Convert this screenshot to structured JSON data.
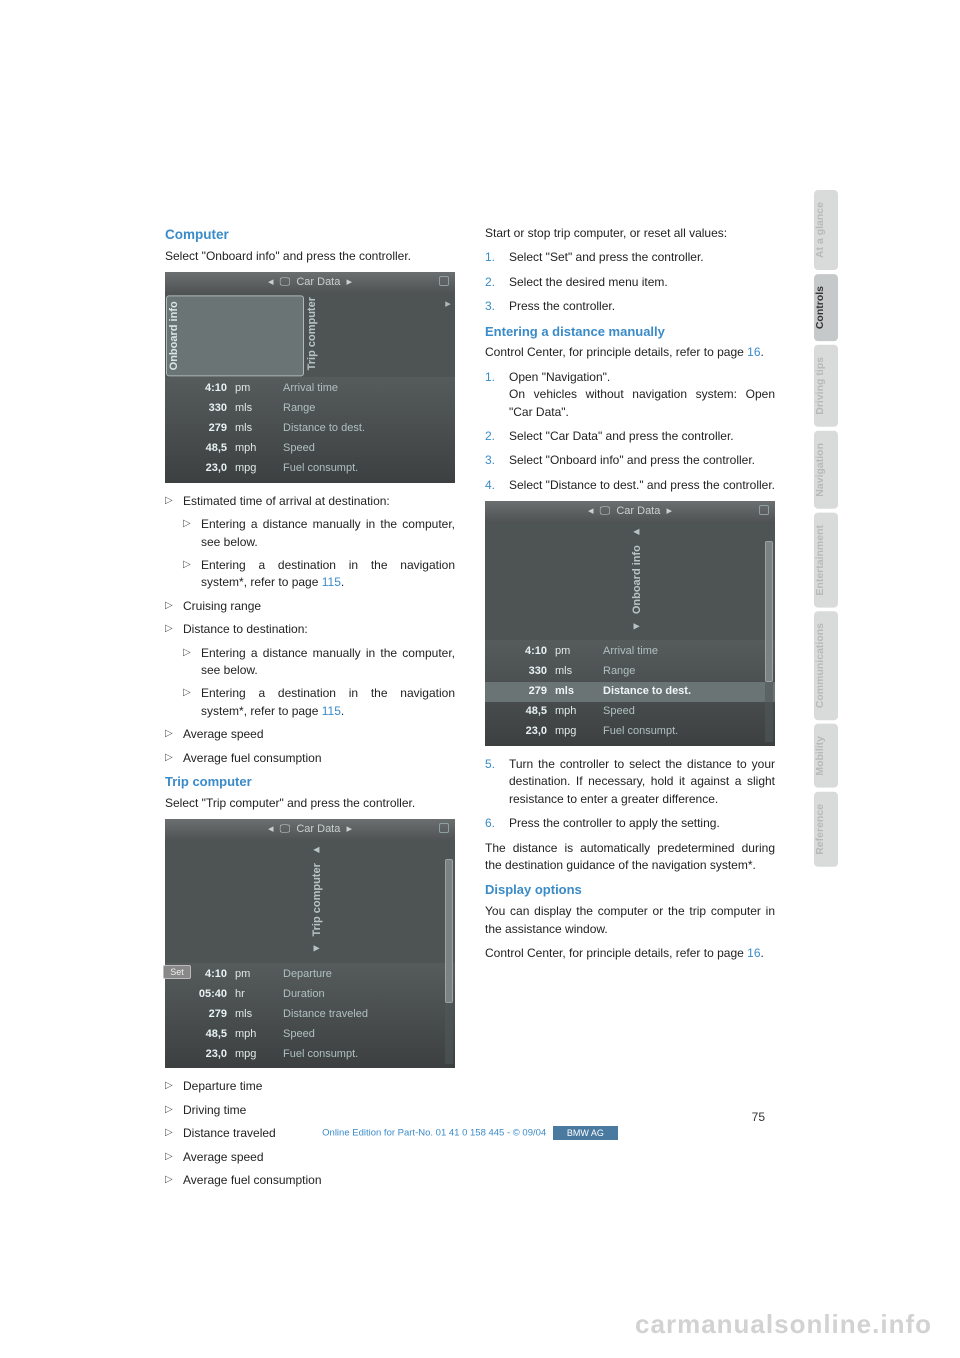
{
  "left": {
    "h_computer": "Computer",
    "p_computer": "Select \"Onboard info\" and press the controller.",
    "img1": {
      "header": "Car Data",
      "tab_active": "Onboard info",
      "tab_inactive": "Trip computer",
      "rows": [
        {
          "v": "4:10",
          "u": "pm",
          "l": "Arrival time"
        },
        {
          "v": "330",
          "u": "mls",
          "l": "Range"
        },
        {
          "v": "279",
          "u": "mls",
          "l": "Distance to dest."
        },
        {
          "v": "48,5",
          "u": "mph",
          "l": "Speed"
        },
        {
          "v": "23,0",
          "u": "mpg",
          "l": "Fuel consumpt."
        }
      ]
    },
    "bl1": "Estimated time of arrival at destination:",
    "bl1a": "Entering a distance manually in the computer, see below.",
    "bl1b_a": "Entering a destination in the navigation system",
    "bl1b_b": ", refer to page ",
    "bl1b_pg": "115",
    "bl1b_c": ".",
    "bl2": "Cruising range",
    "bl3": "Distance to destination:",
    "bl3a": "Entering a distance manually in the computer, see below.",
    "bl3b_a": "Entering a destination in the navigation system",
    "bl3b_b": ", refer to page ",
    "bl3b_pg": "115",
    "bl3b_c": ".",
    "bl4": "Average speed",
    "bl5": "Average fuel consumption",
    "h_trip": "Trip computer",
    "p_trip": "Select \"Trip computer\" and press the controller.",
    "img2": {
      "header": "Car Data",
      "sub": "Trip computer",
      "set": "Set",
      "rows": [
        {
          "v": "4:10",
          "u": "pm",
          "l": "Departure"
        },
        {
          "v": "05:40",
          "u": "hr",
          "l": "Duration"
        },
        {
          "v": "279",
          "u": "mls",
          "l": "Distance traveled"
        },
        {
          "v": "48,5",
          "u": "mph",
          "l": "Speed"
        },
        {
          "v": "23,0",
          "u": "mpg",
          "l": "Fuel consumpt."
        }
      ]
    },
    "trip_b1": "Departure time",
    "trip_b2": "Driving time",
    "trip_b3": "Distance traveled",
    "trip_b4": "Average speed",
    "trip_b5": "Average fuel consumption"
  },
  "right": {
    "p_start": "Start or stop trip computer, or reset all values:",
    "s1": "Select \"Set\" and press the controller.",
    "s2": "Select the desired menu item.",
    "s3": "Press the controller.",
    "h_dist": "Entering a distance manually",
    "p_dist_a": "Control Center, for principle details, refer to page ",
    "p_dist_pg": "16",
    "p_dist_b": ".",
    "d1a": "Open \"Navigation\".",
    "d1b": "On vehicles without navigation system: Open \"Car Data\".",
    "d2": "Select \"Car Data\" and press the controller.",
    "d3": "Select \"Onboard info\" and press the controller.",
    "d4": "Select \"Distance to dest.\" and press the controller.",
    "img3": {
      "header": "Car Data",
      "sub": "Onboard info",
      "rows": [
        {
          "v": "4:10",
          "u": "pm",
          "l": "Arrival time"
        },
        {
          "v": "330",
          "u": "mls",
          "l": "Range"
        },
        {
          "v": "279",
          "u": "mls",
          "l": "Distance to dest.",
          "hl": true
        },
        {
          "v": "48,5",
          "u": "mph",
          "l": "Speed"
        },
        {
          "v": "23,0",
          "u": "mpg",
          "l": "Fuel consumpt."
        }
      ]
    },
    "d5": "Turn the controller to select the distance to your destination. If necessary, hold it against a slight resistance to enter a greater difference.",
    "d6": "Press the controller to apply the setting.",
    "p_auto_a": "The distance is automatically predetermined during the destination guidance of the navigation system",
    "p_auto_b": ".",
    "h_disp": "Display options",
    "p_disp1": "You can display the computer or the trip computer in the assistance window.",
    "p_disp2_a": "Control Center, for principle details, refer to page ",
    "p_disp2_pg": "16",
    "p_disp2_b": "."
  },
  "tabs": {
    "t1": "At a glance",
    "t2": "Controls",
    "t3": "Driving tips",
    "t4": "Navigation",
    "t5": "Entertainment",
    "t6": "Communications",
    "t7": "Mobility",
    "t8": "Reference"
  },
  "footer": {
    "page": "75",
    "text": "Online Edition for Part-No. 01 41 0 158 445 - © 09/04",
    "bar": "BMW AG"
  },
  "watermark": "carmanualsonline.info"
}
